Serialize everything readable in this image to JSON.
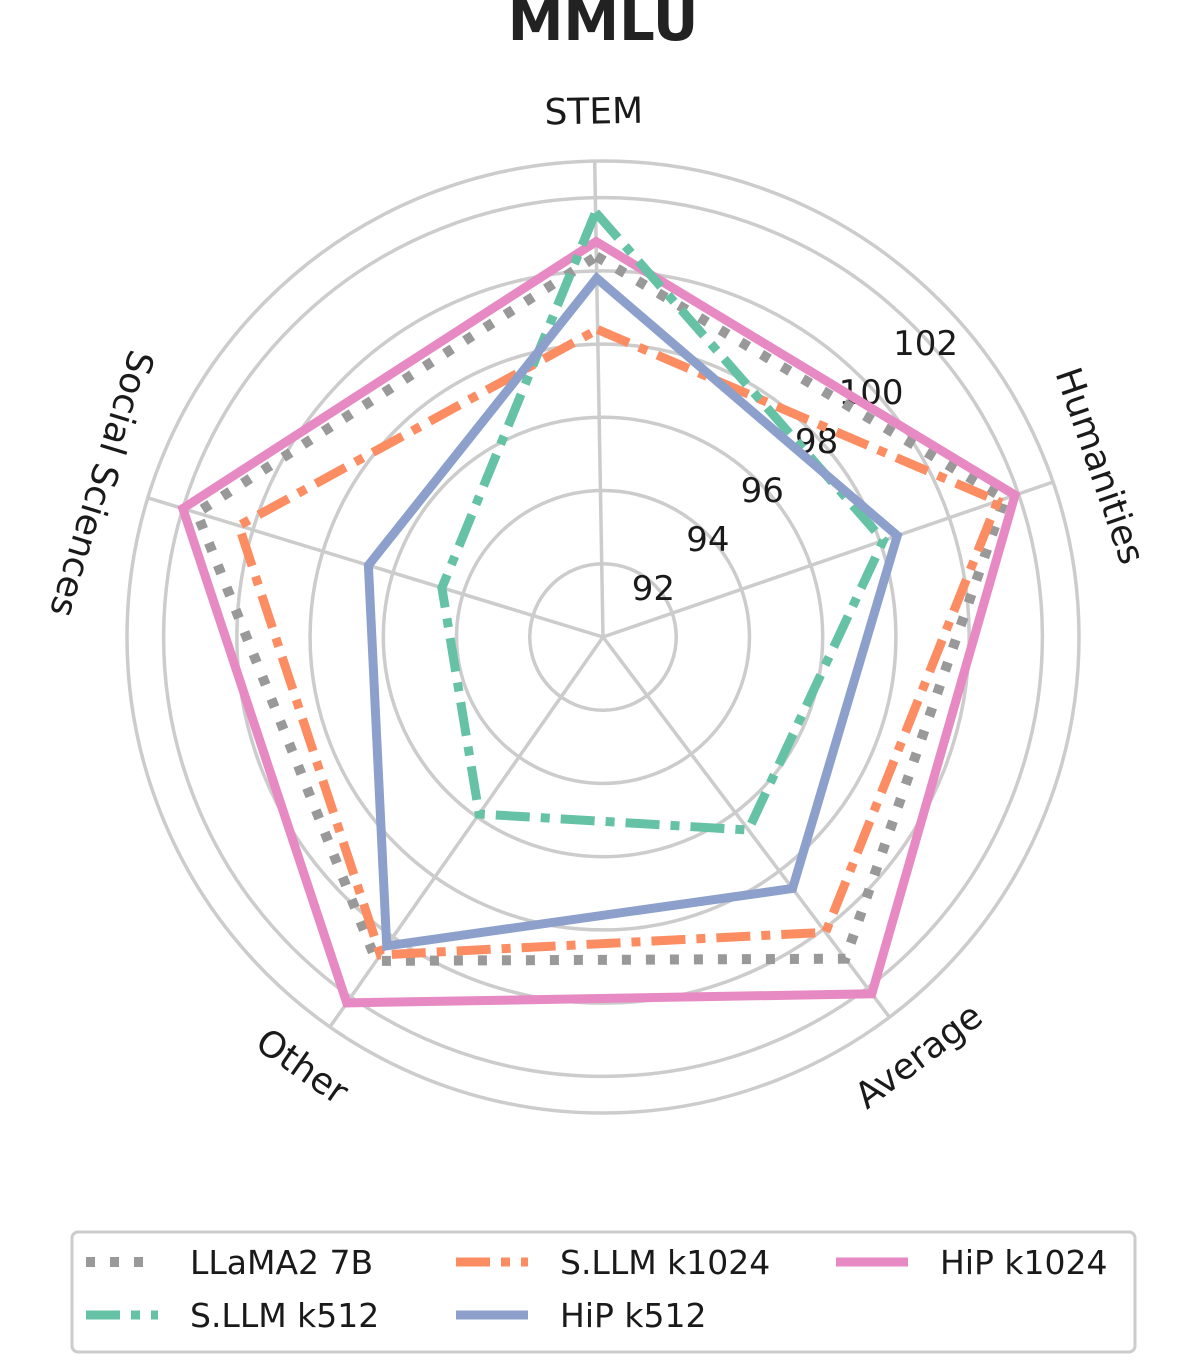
{
  "chart_data": {
    "type": "radar",
    "title": "MMLU",
    "axes": [
      "STEM",
      "Humanities",
      "Average",
      "Other",
      "Social Sciences"
    ],
    "r_ticks": [
      92,
      94,
      96,
      98,
      100,
      102
    ],
    "rlim": [
      90,
      103
    ],
    "grid": true,
    "legend_position": "bottom",
    "series": [
      {
        "name": "LLaMA2 7B",
        "values": [
          100.4,
          101.6,
          101.0,
          100.8,
          101.6
        ],
        "color": "#999999",
        "style": "dotted"
      },
      {
        "name": "S.LLM k1024",
        "values": [
          98.4,
          101.4,
          100.1,
          100.6,
          100.4
        ],
        "color": "#fc8d62",
        "style": "dashdot"
      },
      {
        "name": "HiP k1024",
        "values": [
          100.8,
          101.9,
          102.2,
          102.2,
          102.0
        ],
        "color": "#e78ac3",
        "style": "solid"
      },
      {
        "name": "S.LLM k512",
        "values": [
          101.6,
          98.1,
          96.6,
          95.9,
          94.6
        ],
        "color": "#66c2a5",
        "style": "dashdot"
      },
      {
        "name": "HiP k512",
        "values": [
          99.8,
          98.5,
          98.6,
          100.3,
          96.7
        ],
        "color": "#8da0cb",
        "style": "solid"
      }
    ]
  }
}
